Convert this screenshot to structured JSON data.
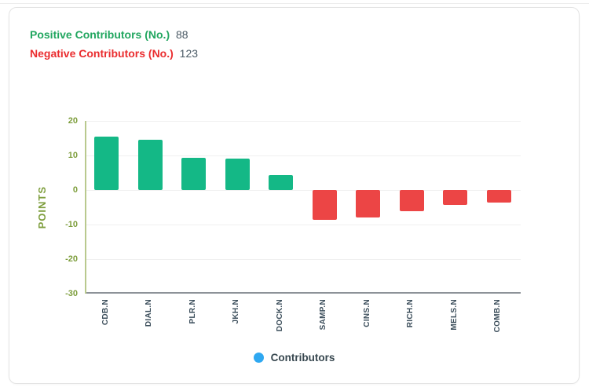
{
  "summary": {
    "positive_label": "Positive Contributors (No.)",
    "positive_value": "88",
    "negative_label": "Negative Contributors (No.)",
    "negative_value": "123"
  },
  "legend": {
    "label": "Contributors"
  },
  "colors": {
    "positive_text": "#21a65f",
    "negative_text": "#ea2d2f",
    "value_text": "#4a5a65",
    "bar_positive": "#14b886",
    "bar_negative": "#ec4545",
    "axis_label": "#7e9e3d",
    "axis_line": "#b9c98e",
    "baseline": "#8d9298",
    "gridline": "#f0f0f0",
    "x_label": "#3d4f5c",
    "legend_dot": "#2fa8f1",
    "legend_text": "#37474f"
  },
  "chart_data": {
    "type": "bar",
    "categories": [
      "CDB.N",
      "DIAL.N",
      "PLR.N",
      "JKH.N",
      "DOCK.N",
      "SAMP.N",
      "CINS.N",
      "RICH.N",
      "MELS.N",
      "COMB.N"
    ],
    "values": [
      15.5,
      14.5,
      9.3,
      9.1,
      4.3,
      -8.6,
      -7.9,
      -6.1,
      -4.4,
      -3.6
    ],
    "title": "",
    "xlabel": "",
    "ylabel": "POINTS",
    "ylim": [
      -30,
      20
    ],
    "yticks": [
      20,
      10,
      0,
      -10,
      -20,
      -30
    ],
    "grid": true,
    "legend_position": "bottom",
    "legend_entries": [
      "Contributors"
    ],
    "positive_color": "#14b886",
    "negative_color": "#ec4545"
  }
}
